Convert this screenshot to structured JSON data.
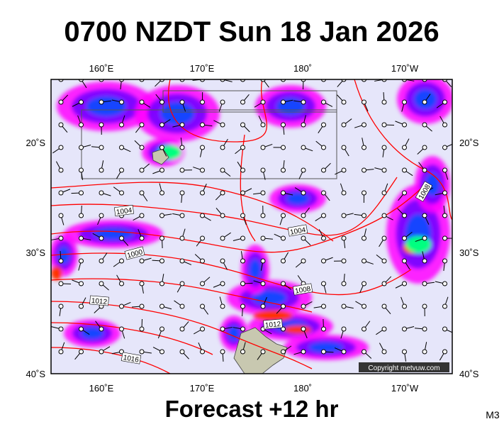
{
  "header": {
    "title": "0700 NZDT Sun 18 Jan 2026"
  },
  "map": {
    "lon_labels": [
      "160˚E",
      "170˚E",
      "180˚",
      "170˚W"
    ],
    "lat_labels": [
      "20˚S",
      "30˚S",
      "40˚S"
    ],
    "isobar_labels": [
      "1004",
      "1004",
      "1000",
      "1008",
      "1008",
      "1012",
      "1012",
      "1016"
    ],
    "copyright": "Copyright metvuw.com"
  },
  "footer": {
    "forecast": "Forecast +12 hr",
    "model": "M3"
  }
}
